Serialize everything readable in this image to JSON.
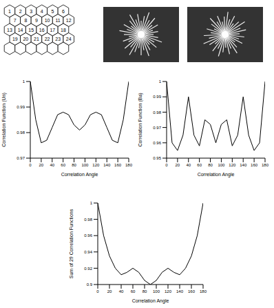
{
  "diagram": {
    "hex_labels": [
      "1",
      "2",
      "3",
      "4",
      "5",
      "6",
      "7",
      "8",
      "9",
      "10",
      "11",
      "12",
      "13",
      "14",
      "15",
      "16",
      "17",
      "18",
      "19",
      "20",
      "21",
      "22",
      "23",
      "24"
    ]
  },
  "chart_data": [
    {
      "type": "line",
      "x_label": "Correlation Angle",
      "y_label": "Correlation Function (Un)",
      "x": [
        0,
        10,
        20,
        30,
        40,
        50,
        60,
        70,
        80,
        90,
        100,
        110,
        120,
        130,
        140,
        150,
        160,
        170,
        180
      ],
      "values": [
        1.0,
        0.985,
        0.976,
        0.977,
        0.982,
        0.987,
        0.988,
        0.987,
        0.983,
        0.981,
        0.983,
        0.987,
        0.988,
        0.987,
        0.982,
        0.977,
        0.976,
        0.985,
        1.0
      ],
      "color": "#000000",
      "xlim": [
        0,
        180
      ],
      "xticks": [
        0,
        20,
        40,
        60,
        80,
        100,
        120,
        140,
        160,
        180
      ],
      "ylim": [
        0.97,
        1
      ],
      "yticks": [
        0.97,
        0.98,
        0.99,
        1
      ]
    },
    {
      "type": "line",
      "x_label": "Correlation Angle",
      "y_label": "Correlation Function (Ba)",
      "x": [
        0,
        10,
        20,
        30,
        40,
        50,
        60,
        70,
        80,
        90,
        100,
        110,
        120,
        130,
        140,
        150,
        160,
        170,
        180
      ],
      "values": [
        1.0,
        0.96,
        0.955,
        0.965,
        0.99,
        0.965,
        0.958,
        0.975,
        0.972,
        0.96,
        0.972,
        0.975,
        0.958,
        0.965,
        0.99,
        0.965,
        0.955,
        0.96,
        1.0
      ],
      "color": "#000000",
      "xlim": [
        0,
        180
      ],
      "xticks": [
        0,
        20,
        40,
        60,
        80,
        100,
        120,
        140,
        160,
        180
      ],
      "ylim": [
        0.95,
        1
      ],
      "yticks": [
        0.95,
        0.96,
        0.97,
        0.98,
        0.99,
        1
      ]
    },
    {
      "type": "line",
      "x_label": "Correlation Angle",
      "y_label": "Sum of 29 Correlation Functions",
      "x": [
        0,
        10,
        20,
        30,
        40,
        50,
        60,
        70,
        80,
        90,
        100,
        110,
        120,
        130,
        140,
        150,
        160,
        170,
        180
      ],
      "values": [
        1.0,
        0.96,
        0.935,
        0.92,
        0.912,
        0.915,
        0.92,
        0.915,
        0.905,
        0.9,
        0.905,
        0.915,
        0.92,
        0.915,
        0.912,
        0.92,
        0.935,
        0.96,
        1.0
      ],
      "color": "#000000",
      "xlim": [
        0,
        180
      ],
      "xticks": [
        0,
        20,
        40,
        60,
        80,
        100,
        120,
        140,
        160,
        180
      ],
      "ylim": [
        0.9,
        1
      ],
      "yticks": [
        0.9,
        0.92,
        0.94,
        0.96,
        0.98,
        1
      ]
    }
  ]
}
